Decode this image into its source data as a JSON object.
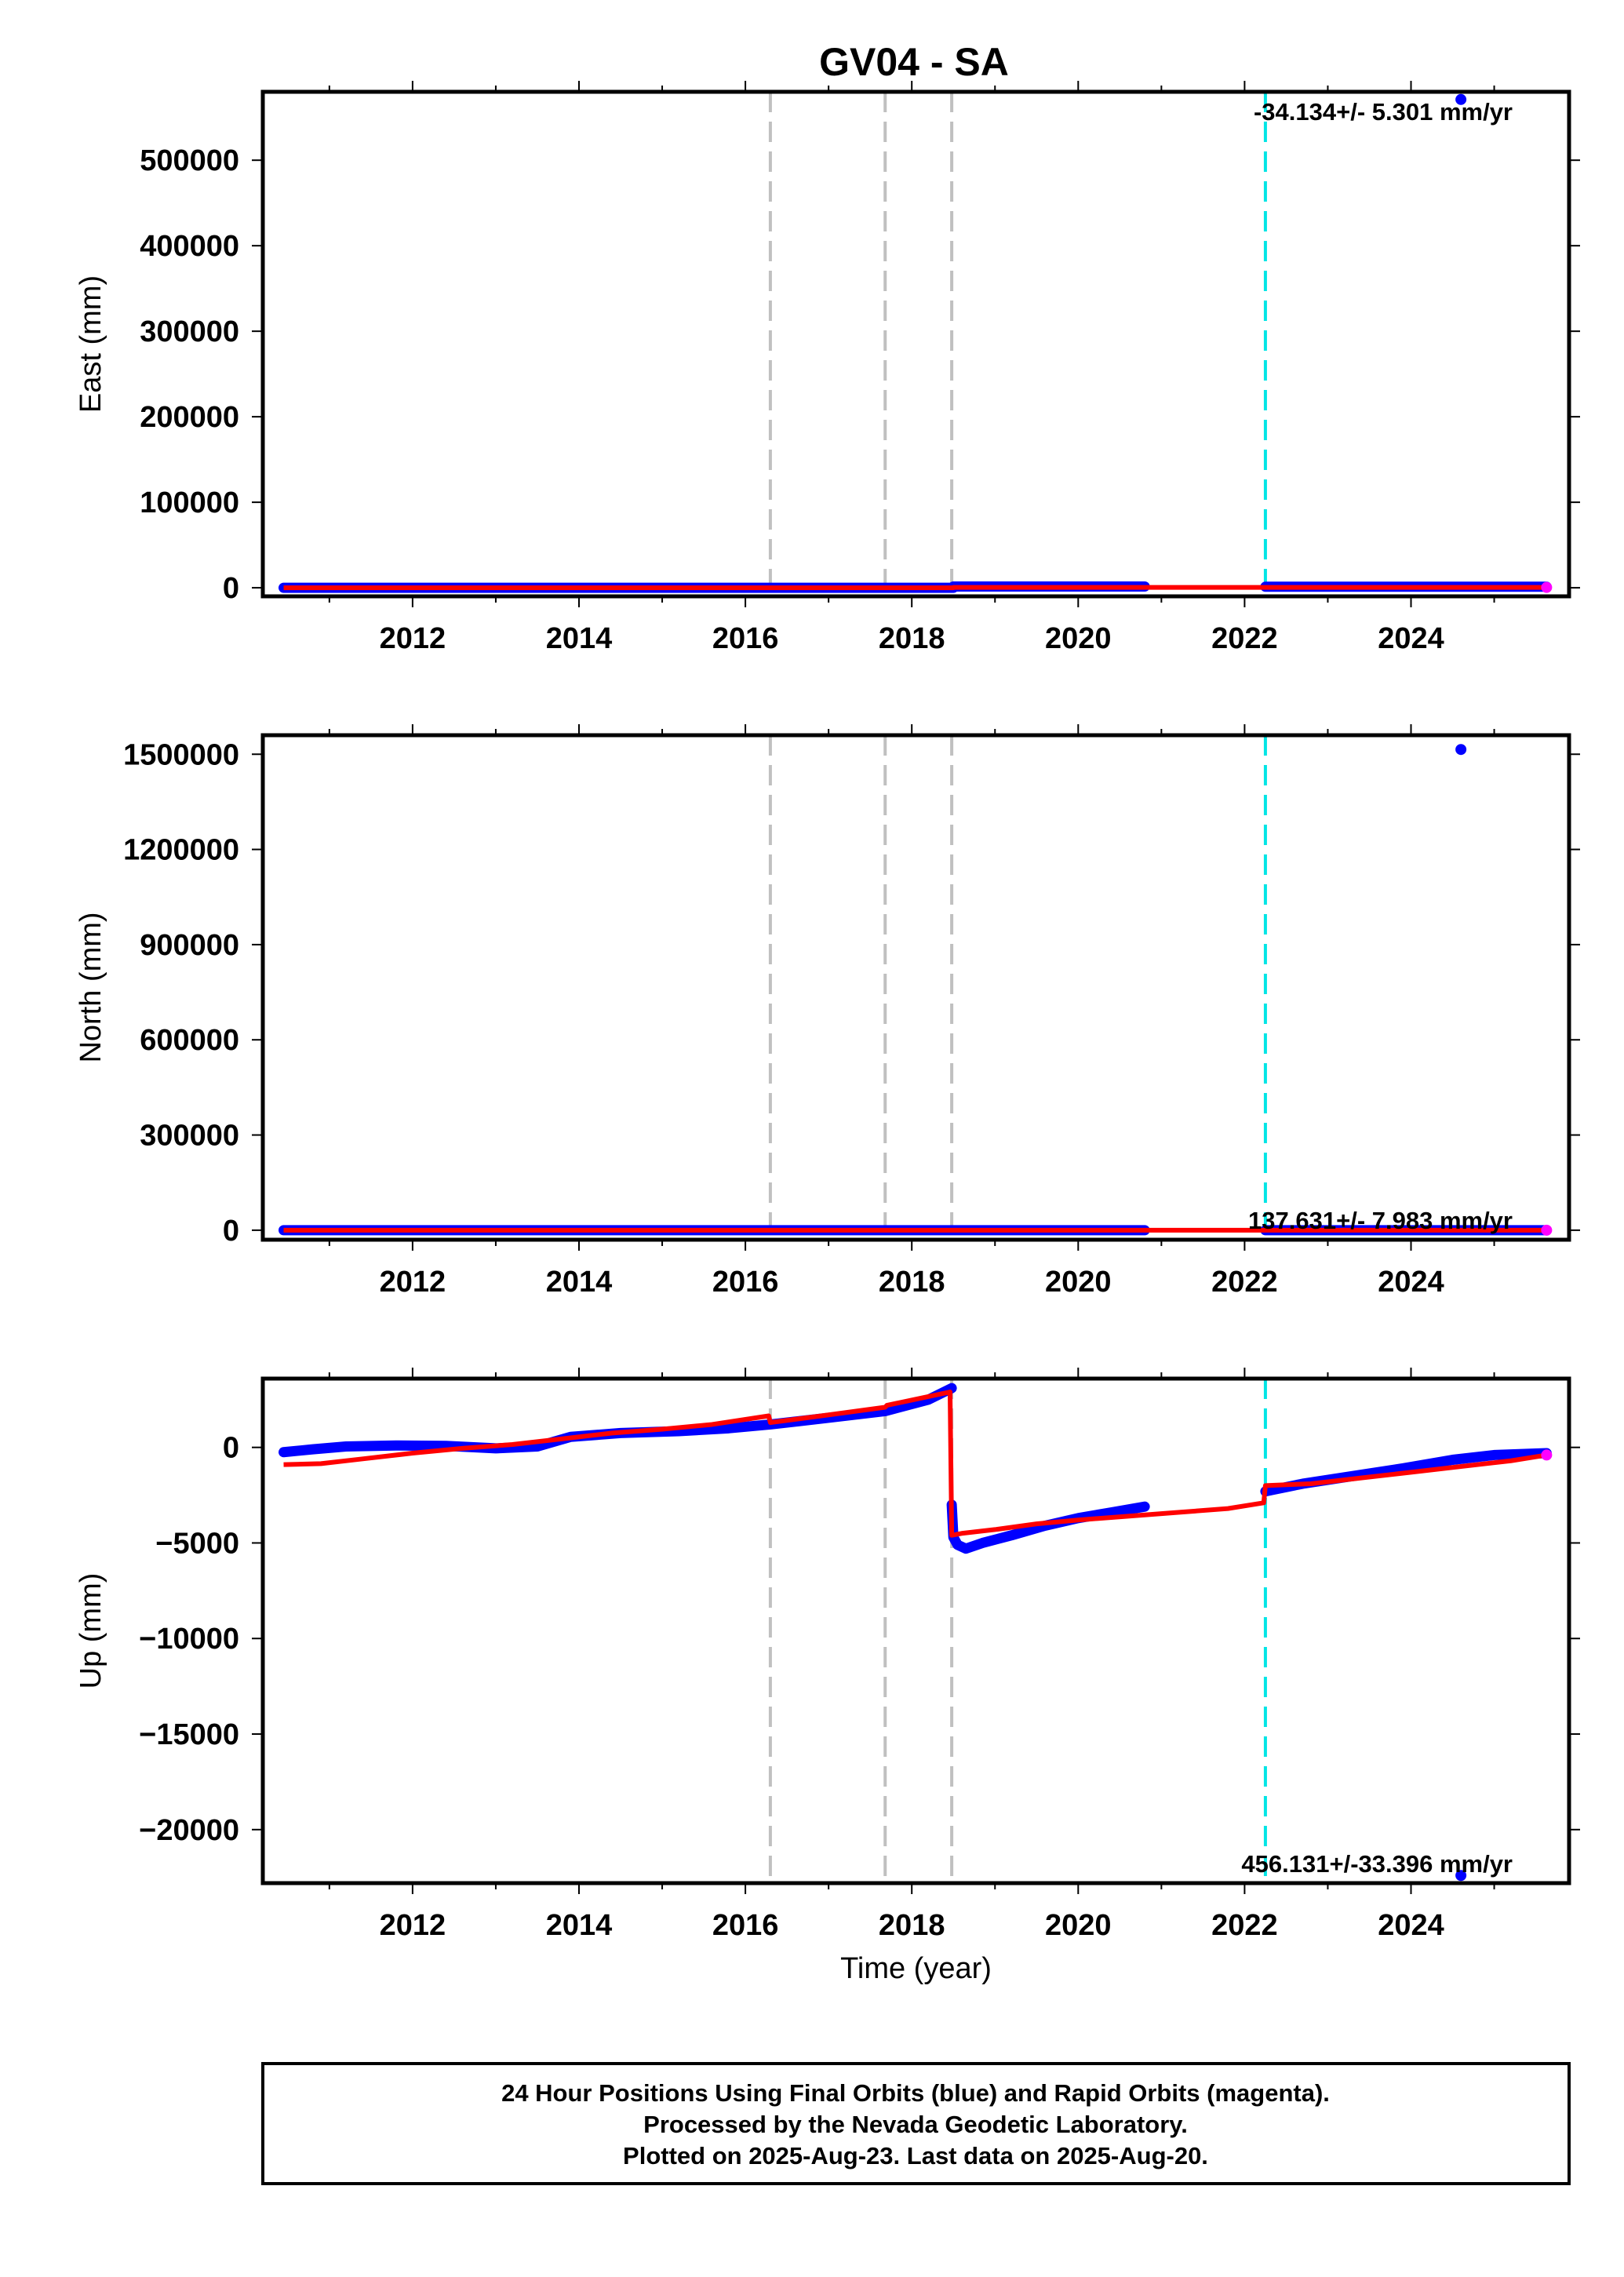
{
  "title": "GV04 - SA",
  "colors": {
    "final": "#0000ff",
    "rapid": "#ff00ff",
    "model": "#ff0000",
    "equipment_change": "#c0c0c0",
    "earthquake": "#00e5e5"
  },
  "x_axis": {
    "label": "Time (year)",
    "range": [
      2010.2,
      2025.9
    ],
    "ticks": [
      2012,
      2014,
      2016,
      2018,
      2020,
      2022,
      2024
    ],
    "tick_labels": [
      "2012",
      "2014",
      "2016",
      "2018",
      "2020",
      "2022",
      "2024"
    ]
  },
  "vertical_lines": {
    "gray": [
      2016.3,
      2017.68,
      2018.48
    ],
    "cyan": [
      2022.25
    ]
  },
  "footer": {
    "line1": "24 Hour Positions Using Final Orbits (blue) and Rapid Orbits (magenta).",
    "line2": "Processed by the Nevada Geodetic Laboratory.",
    "line3": "Plotted on 2025-Aug-23. Last data on 2025-Aug-20."
  },
  "chart_data": [
    {
      "type": "scatter",
      "name": "east",
      "ylabel": "East (mm)",
      "ylim": [
        -10000,
        580000
      ],
      "yticks": [
        0,
        100000,
        200000,
        300000,
        400000,
        500000
      ],
      "ytick_labels": [
        "0",
        "100000",
        "200000",
        "300000",
        "400000",
        "500000"
      ],
      "rate_text": "-34.134+/- 5.301 mm/yr",
      "rate_position": "top-right",
      "final_segments": [
        {
          "x": [
            2010.45,
            2018.5
          ],
          "y": [
            0,
            0
          ]
        },
        {
          "x": [
            2018.5,
            2020.8
          ],
          "y": [
            1500,
            1500
          ]
        },
        {
          "x": [
            2022.25,
            2025.63
          ],
          "y": [
            1200,
            1200
          ]
        }
      ],
      "model_line": {
        "x": [
          2010.45,
          2018.5,
          2018.5,
          2025.63
        ],
        "y": [
          0,
          0,
          400,
          400
        ]
      },
      "outliers": [
        {
          "x": 2024.6,
          "y": 571000
        }
      ]
    },
    {
      "type": "scatter",
      "name": "north",
      "ylabel": "North (mm)",
      "ylim": [
        -30000,
        1560000
      ],
      "yticks": [
        0,
        300000,
        600000,
        900000,
        1200000,
        1500000
      ],
      "ytick_labels": [
        "0",
        "300000",
        "600000",
        "900000",
        "1200000",
        "1500000"
      ],
      "rate_text": "137.631+/- 7.983 mm/yr",
      "rate_position": "bottom-right",
      "final_segments": [
        {
          "x": [
            2010.45,
            2020.8
          ],
          "y": [
            0,
            0
          ]
        },
        {
          "x": [
            2022.25,
            2025.63
          ],
          "y": [
            0,
            0
          ]
        }
      ],
      "model_line": {
        "x": [
          2010.45,
          2025.63
        ],
        "y": [
          0,
          0
        ]
      },
      "outliers": [
        {
          "x": 2024.6,
          "y": 1515000
        }
      ]
    },
    {
      "type": "scatter",
      "name": "up",
      "ylabel": "Up (mm)",
      "ylim": [
        -22800,
        3600
      ],
      "yticks": [
        -20000,
        -15000,
        -10000,
        -5000,
        0
      ],
      "ytick_labels": [
        "−20000",
        "−15000",
        "−10000",
        "−5000",
        "0"
      ],
      "rate_text": "456.131+/-33.396 mm/yr",
      "rate_position": "bottom-right",
      "final_segments": [
        {
          "x": [
            2010.45,
            2010.8,
            2011.2,
            2011.8,
            2012.4,
            2013.0,
            2013.5,
            2013.9,
            2014.5,
            2015.2,
            2015.8,
            2016.3,
            2017.0,
            2017.68,
            2018.2,
            2018.48
          ],
          "y": [
            -250,
            -100,
            50,
            100,
            80,
            -50,
            50,
            550,
            750,
            850,
            1000,
            1200,
            1550,
            1900,
            2500,
            3100
          ]
        },
        {
          "x": [
            2018.48,
            2018.5,
            2018.55,
            2018.65,
            2018.85,
            2019.2,
            2019.6,
            2020.0,
            2020.4,
            2020.8
          ],
          "y": [
            -3000,
            -4700,
            -5100,
            -5300,
            -5000,
            -4600,
            -4100,
            -3700,
            -3400,
            -3100
          ]
        },
        {
          "x": [
            2022.25,
            2022.7,
            2023.3,
            2023.9,
            2024.5,
            2025.0,
            2025.63
          ],
          "y": [
            -2300,
            -1900,
            -1500,
            -1100,
            -650,
            -400,
            -300
          ]
        }
      ],
      "model_line": {
        "x": [
          2010.45,
          2010.9,
          2011.4,
          2012.0,
          2012.6,
          2013.2,
          2013.8,
          2014.4,
          2015.0,
          2015.6,
          2016.28,
          2016.3,
          2017.0,
          2017.68,
          2017.7,
          2018.46,
          2018.48,
          2018.6,
          2019.0,
          2019.5,
          2020.0,
          2020.6,
          2021.2,
          2021.8,
          2022.23,
          2022.25,
          2022.8,
          2023.4,
          2024.0,
          2024.6,
          2025.2,
          2025.63
        ],
        "y": [
          -900,
          -850,
          -600,
          -300,
          -50,
          150,
          450,
          750,
          950,
          1200,
          1650,
          1300,
          1700,
          2100,
          2200,
          2900,
          -4600,
          -4500,
          -4300,
          -4000,
          -3800,
          -3600,
          -3400,
          -3200,
          -2900,
          -2000,
          -1900,
          -1600,
          -1300,
          -1000,
          -700,
          -400
        ]
      },
      "outliers": [
        {
          "x": 2024.6,
          "y": -22400
        }
      ]
    }
  ]
}
